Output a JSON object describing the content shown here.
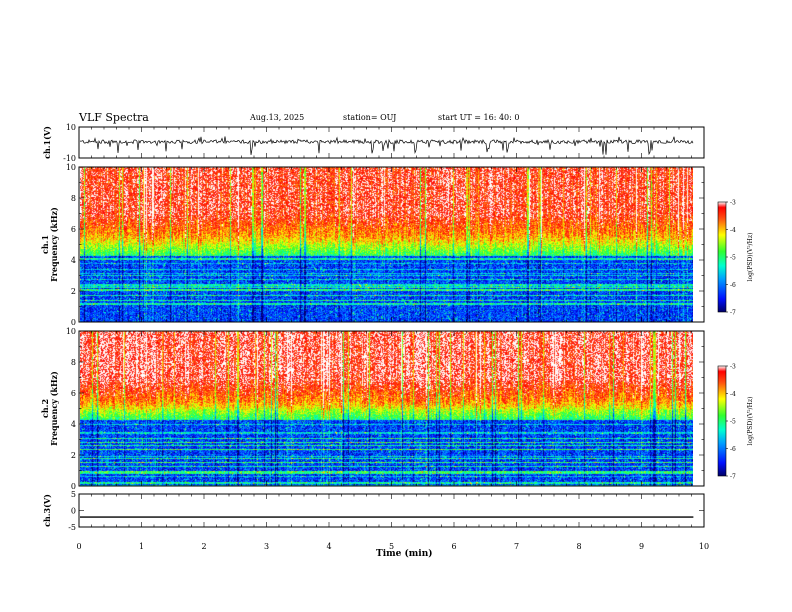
{
  "header": {
    "title": "VLF Spectra",
    "date": "Aug.13, 2025",
    "station": "station= OUJ",
    "start": "start  UT  =   16: 40: 0"
  },
  "chart_data": [
    {
      "type": "line",
      "ylabel": "ch.1(V)",
      "ylim": [
        -10,
        10
      ],
      "y_ticks": [
        "10",
        "-10"
      ],
      "baseline": 0,
      "note_values": {
        "typical_level": 0.5,
        "spike_min": -8
      }
    },
    {
      "type": "heatmap",
      "ylabel_a": "ch.1",
      "ylabel_b": "Frequency (kHz)",
      "ylim": [
        0,
        10
      ],
      "y_ticks": [
        "0",
        "2",
        "4",
        "6",
        "8",
        "10"
      ],
      "colorbar": {
        "label": "log(PSD)(V²/Hz)",
        "range": [
          -7,
          -3
        ],
        "ticks": [
          "-3",
          "-4",
          "-5",
          "-6",
          "-7"
        ]
      }
    },
    {
      "type": "heatmap",
      "ylabel_a": "ch.2",
      "ylabel_b": "Frequency (kHz)",
      "ylim": [
        0,
        10
      ],
      "y_ticks": [
        "0",
        "2",
        "4",
        "6",
        "8",
        "10"
      ],
      "colorbar": {
        "label": "log(PSD)(V²/Hz)",
        "range": [
          -7,
          -3
        ],
        "ticks": [
          "-3",
          "-4",
          "-5",
          "-6",
          "-7"
        ]
      }
    },
    {
      "type": "line",
      "ylabel": "ch.3(V)",
      "ylim": [
        -5,
        5
      ],
      "y_ticks": [
        "5",
        "0",
        "-5"
      ],
      "values_constant": -2
    }
  ],
  "x_axis": {
    "label": "Time  (min)",
    "xlim": [
      0,
      10
    ],
    "ticks": [
      "0",
      "1",
      "2",
      "3",
      "4",
      "5",
      "6",
      "7",
      "8",
      "9",
      "10"
    ]
  },
  "colors": {
    "line": "#000000",
    "frame": "#000000"
  }
}
